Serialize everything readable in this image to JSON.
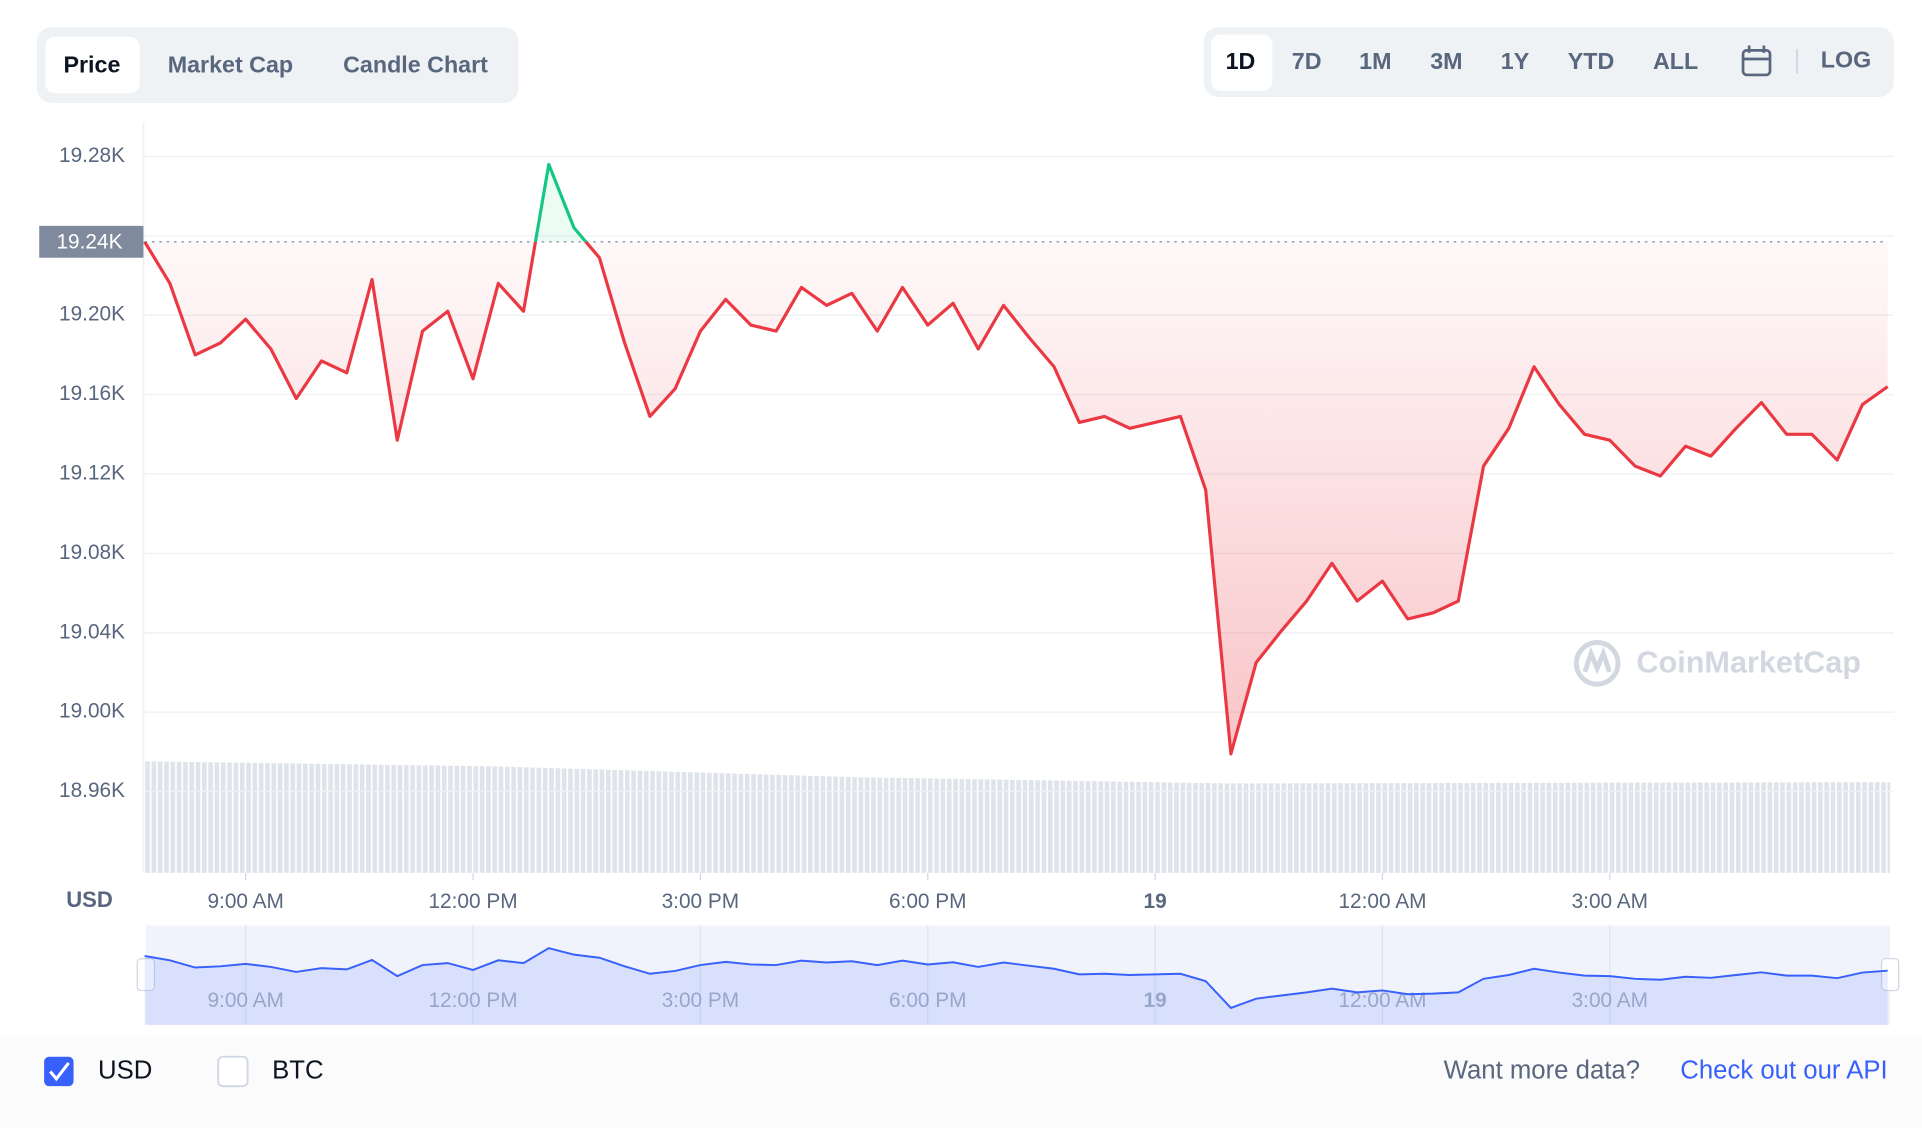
{
  "tabs": [
    "Price",
    "Market Cap",
    "Candle Chart"
  ],
  "ranges": [
    "1D",
    "7D",
    "1M",
    "3M",
    "1Y",
    "YTD",
    "ALL"
  ],
  "log_button": "LOG",
  "currencies": [
    "USD",
    "BTC"
  ],
  "api_prompt": "Want more data?",
  "api_link": "Check out our API",
  "watermark": "CoinMarketCap",
  "chart_data": {
    "type": "line",
    "y_axis_label": "USD",
    "categories": [
      null,
      null,
      null,
      null,
      "9:00 AM",
      null,
      null,
      null,
      null,
      null,
      null,
      null,
      null,
      "12:00 PM",
      null,
      null,
      null,
      null,
      null,
      null,
      null,
      null,
      "3:00 PM",
      null,
      null,
      null,
      null,
      null,
      null,
      null,
      null,
      "6:00 PM",
      null,
      null,
      null,
      null,
      null,
      null,
      null,
      null,
      "19",
      null,
      null,
      null,
      null,
      null,
      null,
      null,
      null,
      "12:00 AM",
      null,
      null,
      null,
      null,
      null,
      null,
      null,
      null,
      "3:00 AM",
      null,
      null,
      null,
      null,
      null,
      null,
      null,
      null,
      null,
      null,
      null
    ],
    "values": [
      19237,
      19216,
      19180,
      19186,
      19198,
      19183,
      19158,
      19177,
      19171,
      19218,
      19137,
      19192,
      19202,
      19168,
      19216,
      19202,
      19276,
      19244,
      19229,
      19186,
      19149,
      19163,
      19192,
      19208,
      19195,
      19192,
      19214,
      19205,
      19211,
      19192,
      19214,
      19195,
      19206,
      19183,
      19205,
      19189,
      19174,
      19146,
      19149,
      19143,
      19146,
      19149,
      19112,
      18979,
      19025,
      19041,
      19056,
      19075,
      19056,
      19066,
      19047,
      19050,
      19056,
      19124,
      19143,
      19174,
      19155,
      19140,
      19137,
      19124,
      19119,
      19134,
      19129,
      19143,
      19156,
      19140,
      19140,
      19127,
      19155,
      19164
    ],
    "ylim": [
      18919,
      19297
    ],
    "yticks": [
      {
        "value": 19280,
        "label": "19.28K"
      },
      {
        "value": 19240,
        "label": "19.24K"
      },
      {
        "value": 19200,
        "label": "19.20K"
      },
      {
        "value": 19160,
        "label": "19.16K"
      },
      {
        "value": 19120,
        "label": "19.12K"
      },
      {
        "value": 19080,
        "label": "19.08K"
      },
      {
        "value": 19040,
        "label": "19.04K"
      },
      {
        "value": 19000,
        "label": "19.00K"
      },
      {
        "value": 18960,
        "label": "18.96K"
      }
    ],
    "baseline": {
      "value": 19237,
      "label": "19.24K"
    },
    "colors": {
      "up": "#16c784",
      "down": "#ea3943",
      "navigator": "#3861fb"
    },
    "grid": true
  }
}
